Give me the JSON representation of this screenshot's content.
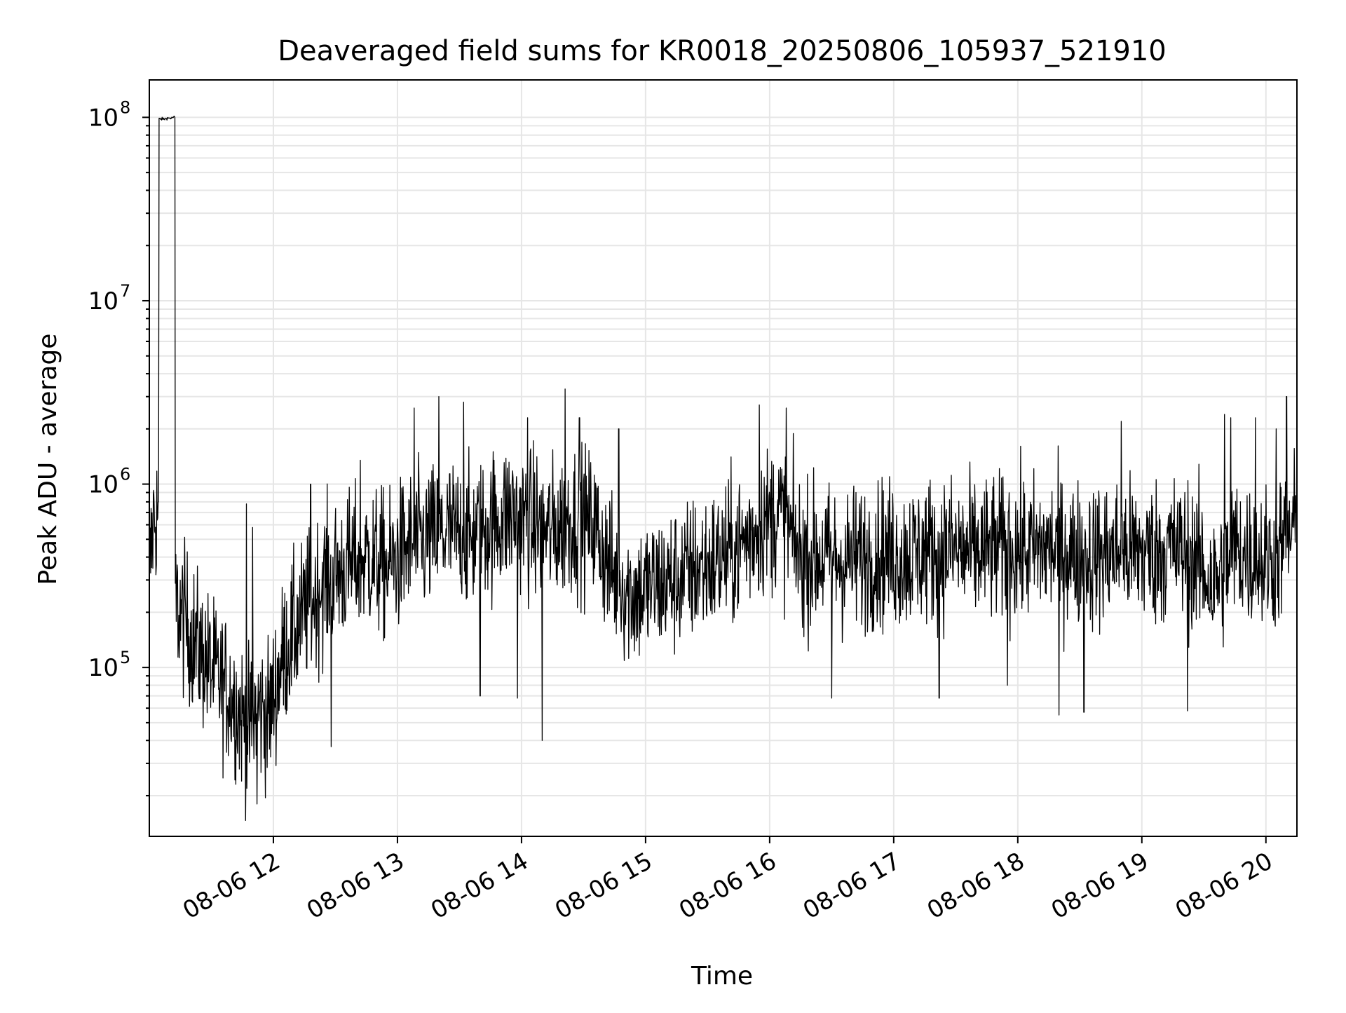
{
  "chart_data": {
    "type": "line",
    "title": "Deaveraged field sums for KR0018_20250806_105937_521910",
    "xlabel": "Time",
    "ylabel": "Peak ADU - average",
    "xlim": [
      "08-06 11:00",
      "08-06 20:15"
    ],
    "ylim": [
      12000,
      160000000
    ],
    "yscale": "log",
    "grid": true,
    "legend": "none",
    "line_color": "#000000",
    "x_ticks": [
      "08-06 12",
      "08-06 13",
      "08-06 14",
      "08-06 15",
      "08-06 16",
      "08-06 17",
      "08-06 18",
      "08-06 19",
      "08-06 20"
    ],
    "y_ticks": [
      {
        "base": "10",
        "exp": "5",
        "value": 100000
      },
      {
        "base": "10",
        "exp": "6",
        "value": 1000000
      },
      {
        "base": "10",
        "exp": "7",
        "value": 10000000
      },
      {
        "base": "10",
        "exp": "8",
        "value": 100000000
      }
    ],
    "series": [
      {
        "points": [
          [
            "08-06 11:00",
            300000
          ],
          [
            "08-06 11:02",
            650000
          ],
          [
            "08-06 11:04",
            700000
          ],
          [
            "08-06 11:05",
            98000000
          ],
          [
            "08-06 11:08",
            99000000
          ],
          [
            "08-06 11:11",
            100000000
          ],
          [
            "08-06 11:12",
            100000000
          ],
          [
            "08-06 11:13",
            220000
          ],
          [
            "08-06 11:18",
            170000
          ],
          [
            "08-06 11:25",
            120000
          ],
          [
            "08-06 11:32",
            90000
          ],
          [
            "08-06 11:40",
            70000
          ],
          [
            "08-06 11:48",
            45000
          ],
          [
            "08-06 11:52",
            60000
          ],
          [
            "08-06 11:58",
            55000
          ],
          [
            "08-06 12:05",
            120000
          ],
          [
            "08-06 12:15",
            200000
          ],
          [
            "08-06 12:25",
            300000
          ],
          [
            "08-06 12:35",
            350000
          ],
          [
            "08-06 12:45",
            400000
          ],
          [
            "08-06 12:55",
            350000
          ],
          [
            "08-06 13:05",
            450000
          ],
          [
            "08-06 13:15",
            500000
          ],
          [
            "08-06 13:25",
            550000
          ],
          [
            "08-06 13:35",
            500000
          ],
          [
            "08-06 13:45",
            600000
          ],
          [
            "08-06 13:55",
            700000
          ],
          [
            "08-06 14:05",
            600000
          ],
          [
            "08-06 14:15",
            550000
          ],
          [
            "08-06 14:25",
            650000
          ],
          [
            "08-06 14:35",
            600000
          ],
          [
            "08-06 14:45",
            300000
          ],
          [
            "08-06 14:55",
            250000
          ],
          [
            "08-06 15:05",
            280000
          ],
          [
            "08-06 15:15",
            300000
          ],
          [
            "08-06 15:25",
            350000
          ],
          [
            "08-06 15:35",
            380000
          ],
          [
            "08-06 15:45",
            450000
          ],
          [
            "08-06 15:55",
            600000
          ],
          [
            "08-06 16:05",
            700000
          ],
          [
            "08-06 16:15",
            400000
          ],
          [
            "08-06 16:25",
            400000
          ],
          [
            "08-06 16:35",
            380000
          ],
          [
            "08-06 16:45",
            400000
          ],
          [
            "08-06 16:55",
            420000
          ],
          [
            "08-06 17:05",
            400000
          ],
          [
            "08-06 17:15",
            430000
          ],
          [
            "08-06 17:25",
            450000
          ],
          [
            "08-06 17:35",
            420000
          ],
          [
            "08-06 17:45",
            430000
          ],
          [
            "08-06 17:55",
            450000
          ],
          [
            "08-06 18:05",
            430000
          ],
          [
            "08-06 18:15",
            450000
          ],
          [
            "08-06 18:25",
            420000
          ],
          [
            "08-06 18:35",
            400000
          ],
          [
            "08-06 18:45",
            420000
          ],
          [
            "08-06 18:55",
            430000
          ],
          [
            "08-06 19:05",
            420000
          ],
          [
            "08-06 19:15",
            450000
          ],
          [
            "08-06 19:25",
            400000
          ],
          [
            "08-06 19:35",
            280000
          ],
          [
            "08-06 19:45",
            450000
          ],
          [
            "08-06 19:55",
            380000
          ],
          [
            "08-06 20:05",
            400000
          ],
          [
            "08-06 20:15",
            600000
          ]
        ]
      }
    ],
    "spikes": [
      [
        "08-06 11:47",
        780000
      ],
      [
        "08-06 11:50",
        580000
      ],
      [
        "08-06 11:52",
        18000
      ],
      [
        "08-06 12:18",
        1000000
      ],
      [
        "08-06 12:28",
        37000
      ],
      [
        "08-06 12:42",
        1350000
      ],
      [
        "08-06 13:08",
        2600000
      ],
      [
        "08-06 13:20",
        3000000
      ],
      [
        "08-06 13:32",
        2800000
      ],
      [
        "08-06 13:40",
        70000
      ],
      [
        "08-06 13:58",
        68000
      ],
      [
        "08-06 14:03",
        2300000
      ],
      [
        "08-06 14:10",
        40000
      ],
      [
        "08-06 14:21",
        3300000
      ],
      [
        "08-06 14:28",
        2300000
      ],
      [
        "08-06 14:47",
        2000000
      ],
      [
        "08-06 15:55",
        2700000
      ],
      [
        "08-06 16:08",
        2600000
      ],
      [
        "08-06 16:30",
        68000
      ],
      [
        "08-06 17:22",
        68000
      ],
      [
        "08-06 17:55",
        80000
      ],
      [
        "08-06 18:20",
        55000
      ],
      [
        "08-06 18:32",
        57000
      ],
      [
        "08-06 18:50",
        2200000
      ],
      [
        "08-06 19:22",
        58000
      ],
      [
        "08-06 19:40",
        2400000
      ],
      [
        "08-06 19:43",
        2300000
      ],
      [
        "08-06 19:55",
        2300000
      ],
      [
        "08-06 20:05",
        2000000
      ],
      [
        "08-06 20:10",
        3000000
      ]
    ]
  }
}
